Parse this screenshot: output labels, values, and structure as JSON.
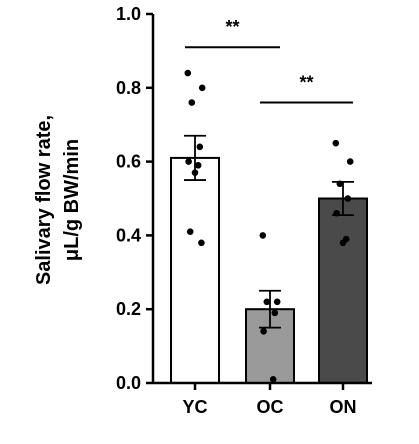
{
  "chart_data": {
    "type": "bar",
    "ylabel_lines": [
      "Salivary flow rate,",
      "μL/g BW/min"
    ],
    "ylim": [
      0,
      1.0
    ],
    "yticks": [
      "0.0",
      "0.2",
      "0.4",
      "0.6",
      "0.8",
      "1.0"
    ],
    "yticks_values": [
      0,
      0.2,
      0.4,
      0.6,
      0.8,
      1.0
    ],
    "categories": [
      "YC",
      "OC",
      "ON"
    ],
    "values": [
      0.61,
      0.2,
      0.5
    ],
    "sem": [
      0.06,
      0.05,
      0.045
    ],
    "bar_colors": [
      "#ffffff",
      "#9a9a9a",
      "#4a4a4a"
    ],
    "points": [
      [
        0.84,
        0.8,
        0.76,
        0.64,
        0.6,
        0.59,
        0.57,
        0.41,
        0.38
      ],
      [
        0.4,
        0.22,
        0.22,
        0.19,
        0.14,
        0.01
      ],
      [
        0.65,
        0.6,
        0.54,
        0.5,
        0.46,
        0.39,
        0.38
      ]
    ],
    "significance": [
      {
        "from": 0,
        "to": 1,
        "label": "**",
        "y": 0.91
      },
      {
        "from": 1,
        "to": 2,
        "label": "**",
        "y": 0.76
      }
    ],
    "grid": false,
    "legend": "none"
  }
}
